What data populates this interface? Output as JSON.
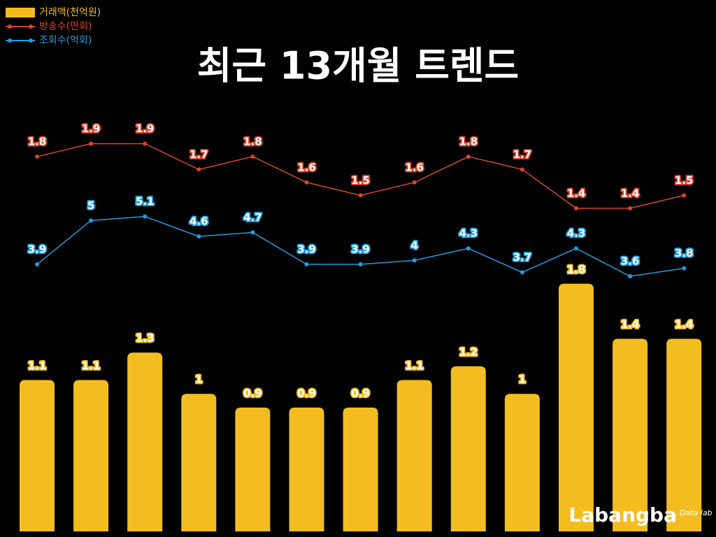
{
  "chart_data": {
    "type": "combo",
    "title": "최근 13개월 트렌드",
    "series": [
      {
        "name": "거래액(천억원)",
        "type": "bar",
        "color": "#f4bd1f",
        "ylim": [
          0,
          3.1
        ],
        "values": [
          1.1,
          1.1,
          1.3,
          1,
          0.9,
          0.9,
          0.9,
          1.1,
          1.2,
          1,
          1.8,
          1.4,
          1.4
        ]
      },
      {
        "name": "방송수(만회)",
        "type": "line",
        "color": "#d9442a",
        "ylim": [
          -1.1,
          2.2
        ],
        "values": [
          1.8,
          1.9,
          1.9,
          1.7,
          1.8,
          1.6,
          1.5,
          1.6,
          1.8,
          1.7,
          1.4,
          1.4,
          1.5
        ]
      },
      {
        "name": "조회수(억회)",
        "type": "line",
        "color": "#1f9ee0",
        "ylim": [
          -2.8,
          7.9
        ],
        "values": [
          3.9,
          5,
          5.1,
          4.6,
          4.7,
          3.9,
          3.9,
          4,
          4.3,
          3.7,
          4.3,
          3.6,
          3.8
        ]
      }
    ],
    "legend": "top-left"
  },
  "logo": {
    "name": "Labangba",
    "sub": "Data lab"
  }
}
